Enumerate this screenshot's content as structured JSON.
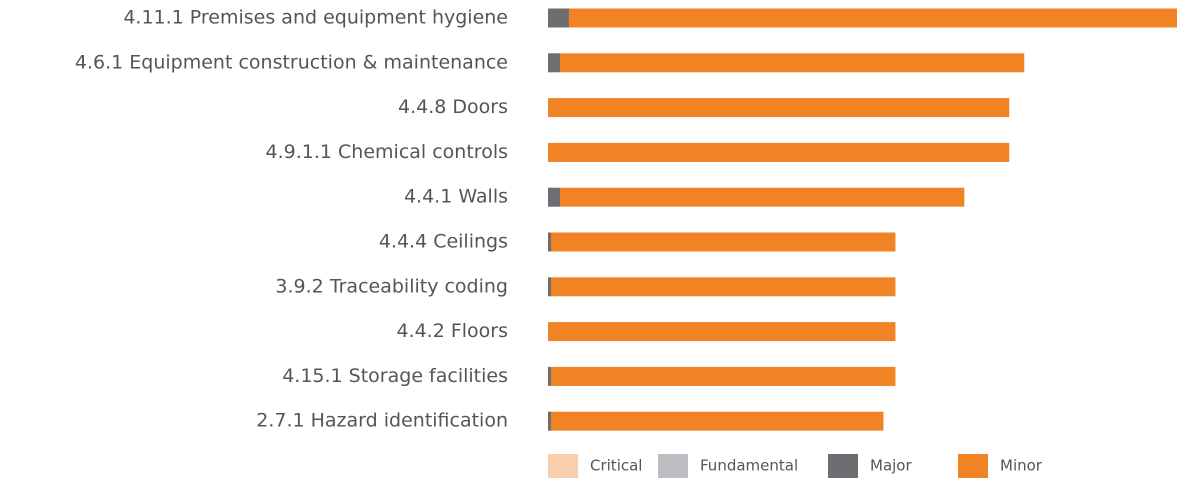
{
  "chart_data": {
    "type": "stacked-bar-horizontal",
    "categories": [
      "4.11.1 Premises and equipment hygiene",
      "4.6.1 Equipment construction & maintenance",
      "4.4.8 Doors",
      "4.9.1.1 Chemical controls",
      "4.4.1 Walls",
      "4.4.4 Ceilings",
      "3.9.2 Traceability coding",
      "4.4.2 Floors",
      "4.15.1 Storage facilities",
      "2.7.1 Hazard identification"
    ],
    "series": [
      {
        "name": "Critical",
        "color": "#f9cfae",
        "values": [
          0,
          0,
          0,
          0,
          0,
          0,
          0,
          0,
          0,
          0
        ]
      },
      {
        "name": "Fundamental",
        "color": "#bcbdc0",
        "values": [
          0,
          0,
          0,
          0,
          0,
          0,
          0,
          0,
          0,
          0
        ]
      },
      {
        "name": "Major",
        "color": "#6d6e71",
        "values": [
          7,
          4,
          0,
          0,
          4,
          1,
          1,
          0,
          1,
          1
        ]
      },
      {
        "name": "Minor",
        "color": "#f08424",
        "values": [
          203,
          155,
          154,
          154,
          135,
          115,
          115,
          116,
          115,
          111
        ]
      }
    ],
    "legend": "bottom"
  }
}
